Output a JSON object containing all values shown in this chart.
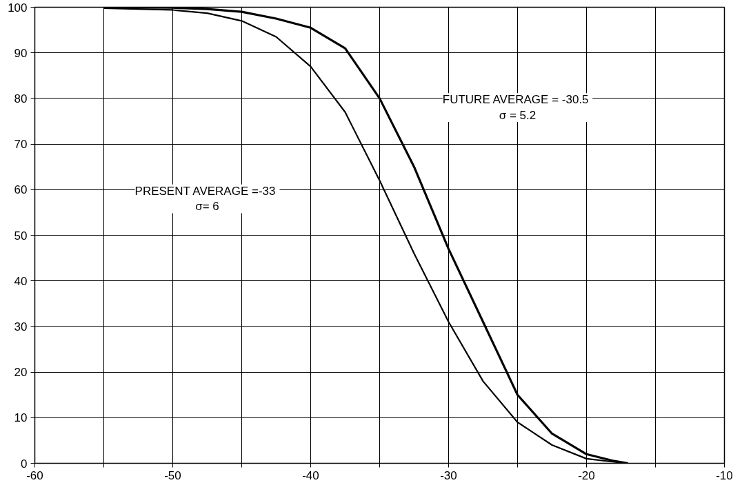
{
  "chart_data": {
    "type": "line",
    "xlim": [
      -60,
      -10
    ],
    "ylim": [
      0,
      100
    ],
    "xticks": [
      -60,
      {
        "value": -55,
        "label": null
      },
      -50,
      {
        "value": -45,
        "label": null
      },
      -40,
      {
        "value": -35,
        "label": null
      },
      -30,
      {
        "value": -25,
        "label": null
      },
      -20,
      {
        "value": -15,
        "label": null
      },
      -10
    ],
    "yticks": [
      0,
      10,
      20,
      30,
      40,
      50,
      60,
      70,
      80,
      90,
      100
    ],
    "annotations": [
      "PRESENT  AVERAGE =-33\nσ= 6",
      "FUTURE  AVERAGE = -30.5\nσ = 5.2"
    ],
    "grid": true,
    "marker": "none",
    "line_style": "solid",
    "series": [
      {
        "color": "#000000",
        "x": [
          -55,
          -50,
          -47.5,
          -45,
          -42.5,
          -40,
          -37.5,
          -35,
          -32.5,
          -30,
          -27.5,
          -25,
          -22.5,
          -20,
          -18,
          -17
        ],
        "values": [
          99.8,
          99.4,
          98.7,
          97,
          93.5,
          87,
          77,
          62,
          46,
          31,
          18,
          9,
          4,
          1,
          0.3,
          0
        ]
      },
      {
        "color": "#000000",
        "x": [
          -55,
          -50,
          -47.5,
          -45,
          -42.5,
          -40,
          -37.5,
          -35,
          -32.5,
          -30,
          -27.5,
          -25,
          -22.5,
          -20,
          -18,
          -17
        ],
        "values": [
          100,
          99.9,
          99.6,
          99,
          97.5,
          95.5,
          91,
          80,
          65,
          47,
          31,
          15,
          6.5,
          2,
          0.5,
          0
        ]
      }
    ]
  }
}
